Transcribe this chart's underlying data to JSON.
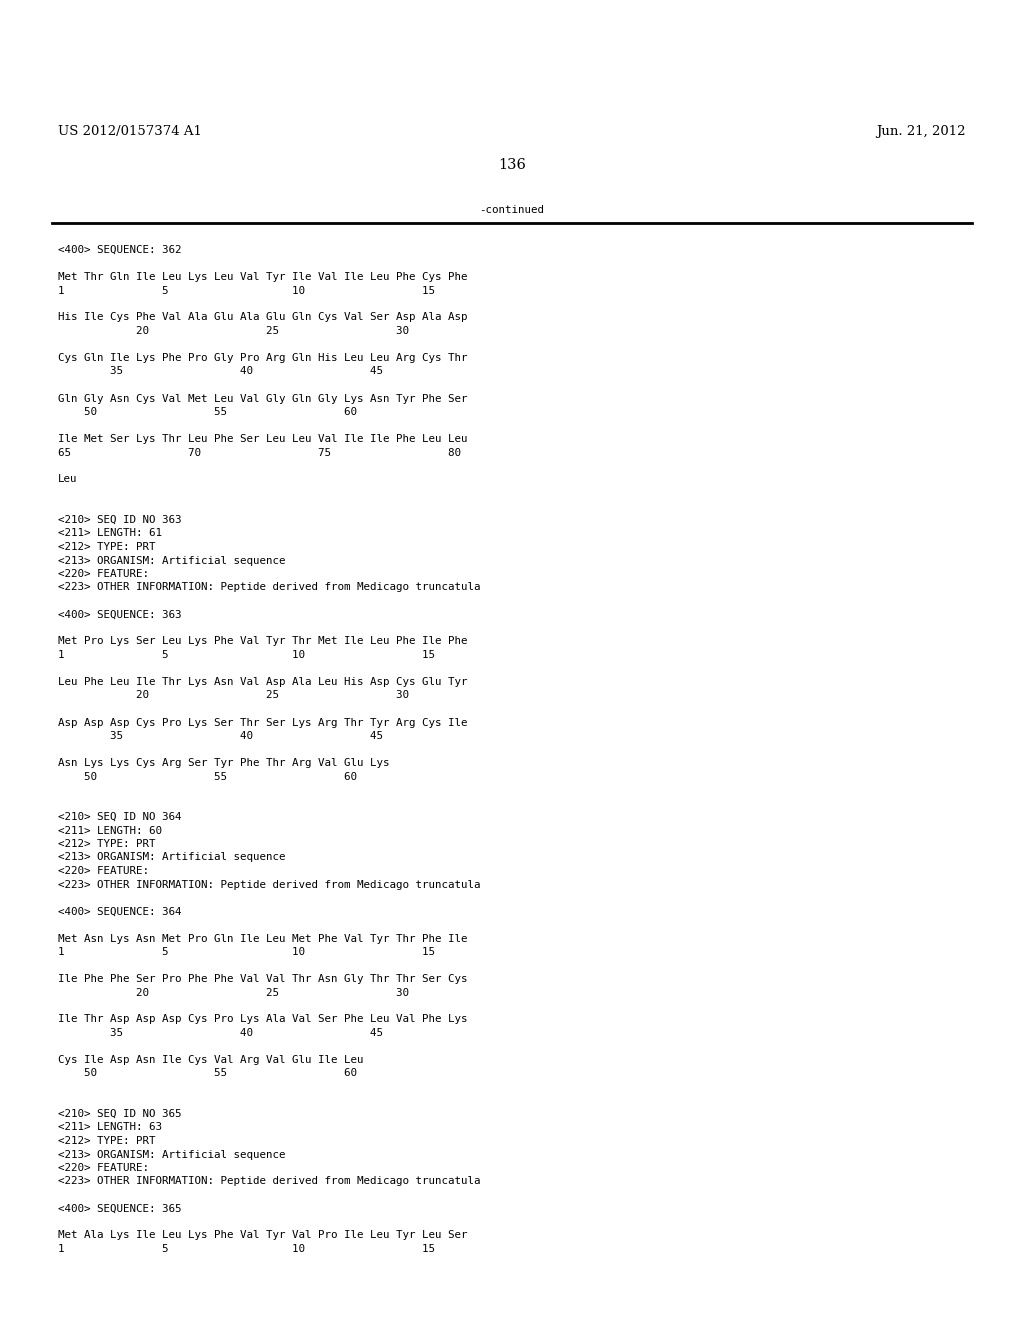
{
  "background_color": "#ffffff",
  "header_left": "US 2012/0157374 A1",
  "header_right": "Jun. 21, 2012",
  "page_number": "136",
  "continued_text": "-continued",
  "font_size_header": 9.5,
  "font_size_body": 7.8,
  "font_size_page": 10.5,
  "content": [
    "<400> SEQUENCE: 362",
    "",
    "Met Thr Gln Ile Leu Lys Leu Val Tyr Ile Val Ile Leu Phe Cys Phe",
    "1               5                   10                  15",
    "",
    "His Ile Cys Phe Val Ala Glu Ala Glu Gln Cys Val Ser Asp Ala Asp",
    "            20                  25                  30",
    "",
    "Cys Gln Ile Lys Phe Pro Gly Pro Arg Gln His Leu Leu Arg Cys Thr",
    "        35                  40                  45",
    "",
    "Gln Gly Asn Cys Val Met Leu Val Gly Gln Gly Lys Asn Tyr Phe Ser",
    "    50                  55                  60",
    "",
    "Ile Met Ser Lys Thr Leu Phe Ser Leu Leu Val Ile Ile Phe Leu Leu",
    "65                  70                  75                  80",
    "",
    "Leu",
    "",
    "",
    "<210> SEQ ID NO 363",
    "<211> LENGTH: 61",
    "<212> TYPE: PRT",
    "<213> ORGANISM: Artificial sequence",
    "<220> FEATURE:",
    "<223> OTHER INFORMATION: Peptide derived from Medicago truncatula",
    "",
    "<400> SEQUENCE: 363",
    "",
    "Met Pro Lys Ser Leu Lys Phe Val Tyr Thr Met Ile Leu Phe Ile Phe",
    "1               5                   10                  15",
    "",
    "Leu Phe Leu Ile Thr Lys Asn Val Asp Ala Leu His Asp Cys Glu Tyr",
    "            20                  25                  30",
    "",
    "Asp Asp Asp Cys Pro Lys Ser Thr Ser Lys Arg Thr Tyr Arg Cys Ile",
    "        35                  40                  45",
    "",
    "Asn Lys Lys Cys Arg Ser Tyr Phe Thr Arg Val Glu Lys",
    "    50                  55                  60",
    "",
    "",
    "<210> SEQ ID NO 364",
    "<211> LENGTH: 60",
    "<212> TYPE: PRT",
    "<213> ORGANISM: Artificial sequence",
    "<220> FEATURE:",
    "<223> OTHER INFORMATION: Peptide derived from Medicago truncatula",
    "",
    "<400> SEQUENCE: 364",
    "",
    "Met Asn Lys Asn Met Pro Gln Ile Leu Met Phe Val Tyr Thr Phe Ile",
    "1               5                   10                  15",
    "",
    "Ile Phe Phe Ser Pro Phe Phe Val Val Thr Asn Gly Thr Thr Ser Cys",
    "            20                  25                  30",
    "",
    "Ile Thr Asp Asp Asp Cys Pro Lys Ala Val Ser Phe Leu Val Phe Lys",
    "        35                  40                  45",
    "",
    "Cys Ile Asp Asn Ile Cys Val Arg Val Glu Ile Leu",
    "    50                  55                  60",
    "",
    "",
    "<210> SEQ ID NO 365",
    "<211> LENGTH: 63",
    "<212> TYPE: PRT",
    "<213> ORGANISM: Artificial sequence",
    "<220> FEATURE:",
    "<223> OTHER INFORMATION: Peptide derived from Medicago truncatula",
    "",
    "<400> SEQUENCE: 365",
    "",
    "Met Ala Lys Ile Leu Lys Phe Val Tyr Val Pro Ile Leu Tyr Leu Ser",
    "1               5                   10                  15"
  ]
}
